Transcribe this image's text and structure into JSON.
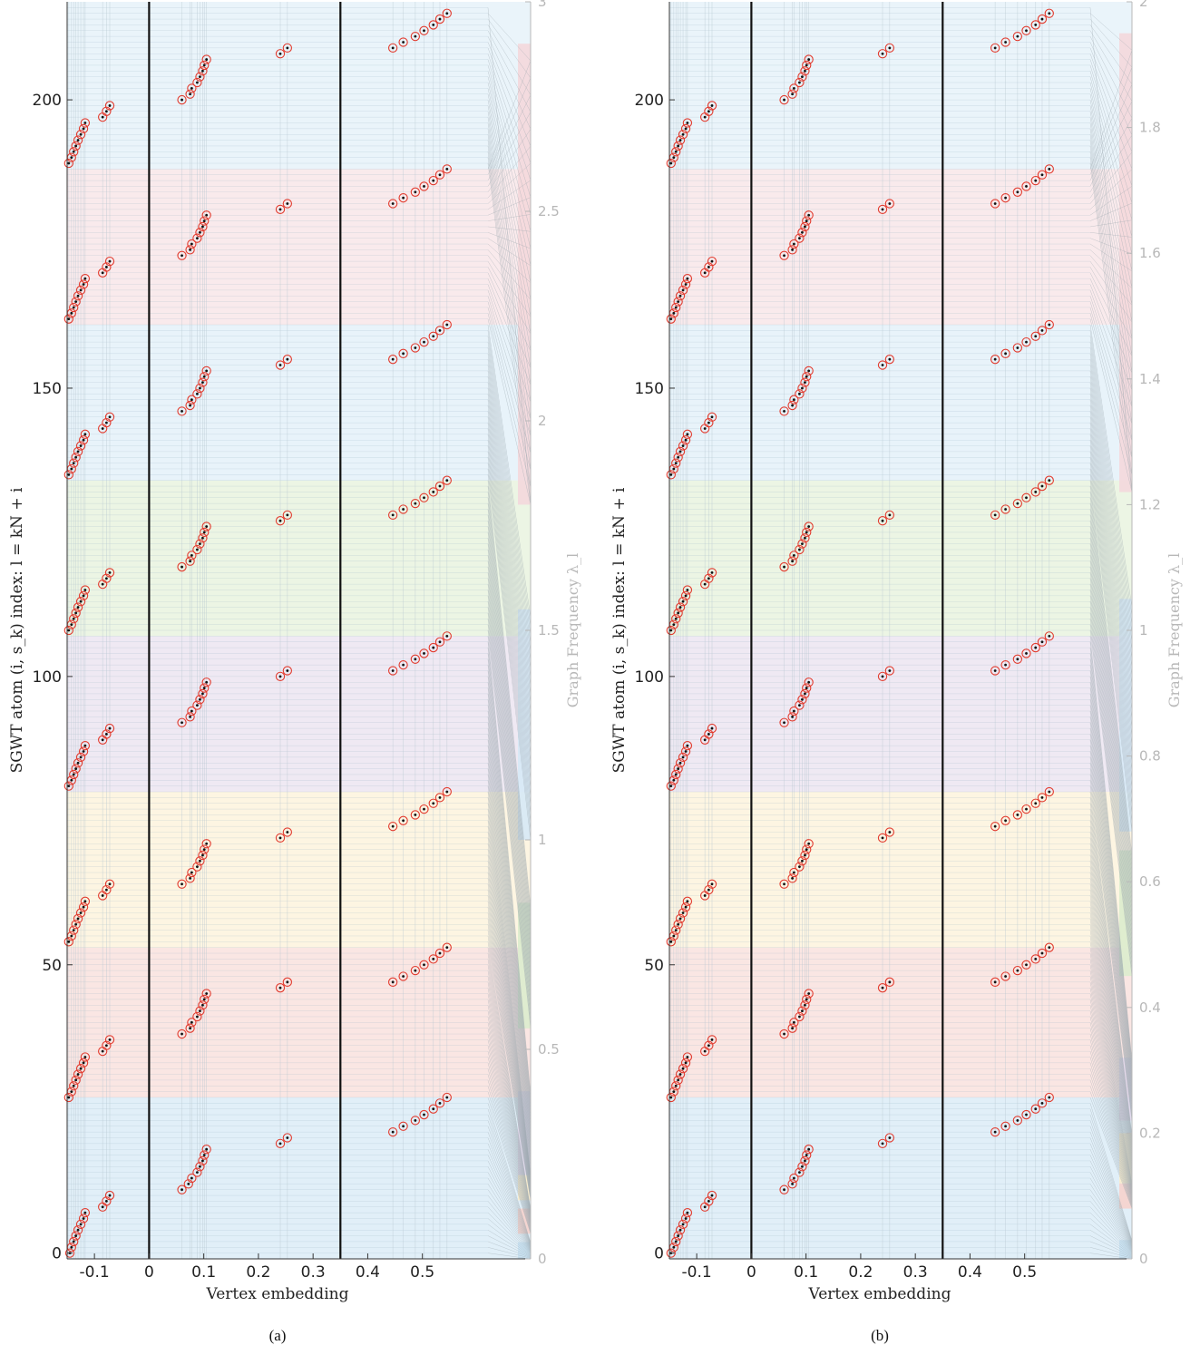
{
  "chart_data": [
    {
      "type": "scatter",
      "caption": "(a)",
      "xlabel": "Vertex embedding",
      "ylabel": "SGWT atom (i, s_k) index: l = kN + i",
      "y2label": "Graph Frequency λ_l",
      "xlim": [
        -0.15,
        0.62
      ],
      "ylim": [
        -1,
        217
      ],
      "xticks": [
        -0.1,
        0,
        0.1,
        0.2,
        0.3,
        0.4,
        0.5
      ],
      "xtick_labels": [
        "-0.1",
        "0",
        "0.1",
        "0.2",
        "0.3",
        "0.4",
        "0.5"
      ],
      "yticks": [
        0,
        50,
        100,
        150,
        200
      ],
      "ytick_labels": [
        "0",
        "50",
        "100",
        "150",
        "200"
      ],
      "freq_lim": [
        0,
        3
      ],
      "freq_ticks": [
        0,
        0.5,
        1,
        1.5,
        2,
        2.5,
        3
      ],
      "freq_tick_labels": [
        "0",
        "0.5",
        "1",
        "1.5",
        "2",
        "2.5",
        "3"
      ],
      "vertical_lines_x": [
        0,
        0.35
      ],
      "bands": [
        {
          "y": [
            -1,
            27
          ],
          "color": "#c9e2f3"
        },
        {
          "y": [
            27,
            53
          ],
          "color": "#f6d2cc"
        },
        {
          "y": [
            53,
            80
          ],
          "color": "#fbeccb"
        },
        {
          "y": [
            80,
            107
          ],
          "color": "#e1d7ea"
        },
        {
          "y": [
            107,
            134
          ],
          "color": "#dceccd"
        },
        {
          "y": [
            134,
            161
          ],
          "color": "#d6e9f6"
        },
        {
          "y": [
            161,
            188
          ],
          "color": "#f4d8dc"
        },
        {
          "y": [
            188,
            217
          ],
          "color": "#d9ebf6"
        }
      ],
      "freq_bands": [
        {
          "y": [
            0,
            0.04
          ],
          "color": "#c9e2f3"
        },
        {
          "y": [
            0.06,
            0.12
          ],
          "color": "#f6d2cc"
        },
        {
          "y": [
            0.14,
            0.2
          ],
          "color": "#fbeccb"
        },
        {
          "y": [
            0.2,
            0.4
          ],
          "color": "#e1d7ea"
        },
        {
          "y": [
            0.55,
            0.85
          ],
          "color": "#dceccd"
        },
        {
          "y": [
            1.0,
            1.55
          ],
          "color": "#d6e9f6"
        },
        {
          "y": [
            1.8,
            2.9
          ],
          "color": "#f4d8dc"
        }
      ],
      "red_circles": [
        {
          "x": [
            -0.145,
            -0.142,
            -0.138,
            -0.134,
            -0.13,
            -0.125,
            -0.12,
            -0.117,
            -0.085,
            -0.078,
            -0.072
          ],
          "y0": 0,
          "dy": 1
        },
        {
          "x": [
            0.06,
            0.072,
            0.078,
            0.088,
            0.093,
            0.098,
            0.101,
            0.105,
            0.24,
            0.253
          ],
          "y0": 11,
          "dy": 1
        },
        {
          "x": [
            0.446,
            0.465,
            0.487,
            0.503,
            0.52,
            0.532,
            0.545
          ],
          "y0": 21,
          "dy": 1
        },
        {
          "x": [
            -0.147,
            -0.142,
            -0.138,
            -0.134,
            -0.13,
            -0.125,
            -0.12,
            -0.117,
            -0.085,
            -0.078,
            -0.072
          ],
          "y0": 27,
          "dy": 1
        },
        {
          "x": [
            0.06,
            0.075,
            0.078,
            0.088,
            0.093,
            0.098,
            0.101,
            0.105,
            0.24,
            0.253
          ],
          "y0": 38,
          "dy": 1
        },
        {
          "x": [
            0.446,
            0.465,
            0.487,
            0.503,
            0.52,
            0.532,
            0.545
          ],
          "y0": 47,
          "dy": 1
        },
        {
          "x": [
            -0.147,
            -0.142,
            -0.138,
            -0.134,
            -0.13,
            -0.125,
            -0.12,
            -0.117,
            -0.085,
            -0.078,
            -0.072
          ],
          "y0": 54,
          "dy": 1
        },
        {
          "x": [
            0.06,
            0.075,
            0.078,
            0.088,
            0.093,
            0.098,
            0.101,
            0.105,
            0.24,
            0.253
          ],
          "y0": 64,
          "dy": 1
        },
        {
          "x": [
            0.446,
            0.465,
            0.487,
            0.503,
            0.52,
            0.532,
            0.545
          ],
          "y0": 74,
          "dy": 1
        },
        {
          "x": [
            -0.147,
            -0.142,
            -0.138,
            -0.134,
            -0.13,
            -0.125,
            -0.12,
            -0.117,
            -0.085,
            -0.078,
            -0.072
          ],
          "y0": 81,
          "dy": 1
        },
        {
          "x": [
            0.06,
            0.075,
            0.078,
            0.088,
            0.093,
            0.098,
            0.101,
            0.105,
            0.24,
            0.253
          ],
          "y0": 92,
          "dy": 1
        },
        {
          "x": [
            0.446,
            0.465,
            0.487,
            0.503,
            0.52,
            0.532,
            0.545
          ],
          "y0": 101,
          "dy": 1
        },
        {
          "x": [
            -0.147,
            -0.142,
            -0.138,
            -0.134,
            -0.13,
            -0.125,
            -0.12,
            -0.117,
            -0.085,
            -0.078,
            -0.072
          ],
          "y0": 108,
          "dy": 1
        },
        {
          "x": [
            0.06,
            0.075,
            0.078,
            0.088,
            0.093,
            0.098,
            0.101,
            0.105,
            0.24,
            0.253
          ],
          "y0": 119,
          "dy": 1
        },
        {
          "x": [
            0.446,
            0.465,
            0.487,
            0.503,
            0.52,
            0.532,
            0.545
          ],
          "y0": 128,
          "dy": 1
        },
        {
          "x": [
            -0.147,
            -0.142,
            -0.138,
            -0.134,
            -0.13,
            -0.125,
            -0.12,
            -0.117,
            -0.085,
            -0.078,
            -0.072
          ],
          "y0": 135,
          "dy": 1
        },
        {
          "x": [
            0.06,
            0.075,
            0.078,
            0.088,
            0.093,
            0.098,
            0.101,
            0.105,
            0.24,
            0.253
          ],
          "y0": 146,
          "dy": 1
        },
        {
          "x": [
            0.446,
            0.465,
            0.487,
            0.503,
            0.52,
            0.532,
            0.545
          ],
          "y0": 155,
          "dy": 1
        },
        {
          "x": [
            -0.147,
            -0.142,
            -0.138,
            -0.134,
            -0.13,
            -0.125,
            -0.12,
            -0.117,
            -0.085,
            -0.078,
            -0.072
          ],
          "y0": 162,
          "dy": 1
        },
        {
          "x": [
            0.06,
            0.075,
            0.078,
            0.088,
            0.093,
            0.098,
            0.101,
            0.105,
            0.24,
            0.253
          ],
          "y0": 173,
          "dy": 1
        },
        {
          "x": [
            0.446,
            0.465,
            0.487,
            0.503,
            0.52,
            0.532,
            0.545
          ],
          "y0": 182,
          "dy": 1
        },
        {
          "x": [
            -0.147,
            -0.142,
            -0.138,
            -0.134,
            -0.13,
            -0.125,
            -0.12,
            -0.117,
            -0.085,
            -0.078,
            -0.072
          ],
          "y0": 189,
          "dy": 1
        },
        {
          "x": [
            0.06,
            0.075,
            0.078,
            0.088,
            0.093,
            0.098,
            0.101,
            0.105,
            0.24,
            0.253
          ],
          "y0": 200,
          "dy": 1
        },
        {
          "x": [
            0.446,
            0.465,
            0.487,
            0.503,
            0.52,
            0.532,
            0.545
          ],
          "y0": 209,
          "dy": 1
        }
      ]
    },
    {
      "type": "scatter",
      "caption": "(b)",
      "xlabel": "Vertex embedding",
      "ylabel": "SGWT atom (i, s_k) index: l = kN + i",
      "y2label": "Graph Frequency λ_l",
      "xlim": [
        -0.15,
        0.62
      ],
      "ylim": [
        -1,
        217
      ],
      "xticks": [
        -0.1,
        0,
        0.1,
        0.2,
        0.3,
        0.4,
        0.5
      ],
      "xtick_labels": [
        "-0.1",
        "0",
        "0.1",
        "0.2",
        "0.3",
        "0.4",
        "0.5"
      ],
      "yticks": [
        0,
        50,
        100,
        150,
        200
      ],
      "ytick_labels": [
        "0",
        "50",
        "100",
        "150",
        "200"
      ],
      "freq_lim": [
        0,
        2
      ],
      "freq_ticks": [
        0,
        0.2,
        0.4,
        0.6,
        0.8,
        1,
        1.2,
        1.4,
        1.6,
        1.8,
        2
      ],
      "freq_tick_labels": [
        "0",
        "0.2",
        "0.4",
        "0.6",
        "0.8",
        "1",
        "1.2",
        "1.4",
        "1.6",
        "1.8",
        "2"
      ],
      "vertical_lines_x": [
        0,
        0.35
      ],
      "bands": [
        {
          "y": [
            -1,
            27
          ],
          "color": "#c9e2f3"
        },
        {
          "y": [
            27,
            53
          ],
          "color": "#f6d2cc"
        },
        {
          "y": [
            53,
            80
          ],
          "color": "#fbeccb"
        },
        {
          "y": [
            80,
            107
          ],
          "color": "#e1d7ea"
        },
        {
          "y": [
            107,
            134
          ],
          "color": "#dceccd"
        },
        {
          "y": [
            134,
            161
          ],
          "color": "#d6e9f6"
        },
        {
          "y": [
            161,
            188
          ],
          "color": "#f4d8dc"
        },
        {
          "y": [
            188,
            217
          ],
          "color": "#d9ebf6"
        }
      ],
      "freq_bands": [
        {
          "y": [
            0,
            0.03
          ],
          "color": "#c9e2f3"
        },
        {
          "y": [
            0.08,
            0.12
          ],
          "color": "#f6d2cc"
        },
        {
          "y": [
            0.12,
            0.2
          ],
          "color": "#fbeccb"
        },
        {
          "y": [
            0.22,
            0.32
          ],
          "color": "#e1d7ea"
        },
        {
          "y": [
            0.45,
            0.65
          ],
          "color": "#dceccd"
        },
        {
          "y": [
            0.68,
            1.05
          ],
          "color": "#d6e9f6"
        },
        {
          "y": [
            1.22,
            1.95
          ],
          "color": "#f4d8dc"
        }
      ],
      "red_circles": [
        {
          "x": [
            -0.147,
            -0.142,
            -0.138,
            -0.134,
            -0.13,
            -0.125,
            -0.12,
            -0.117,
            -0.085,
            -0.078,
            -0.072
          ],
          "y0": 0,
          "dy": 1
        },
        {
          "x": [
            0.06,
            0.075,
            0.078,
            0.088,
            0.093,
            0.098,
            0.101,
            0.105,
            0.24,
            0.253
          ],
          "y0": 11,
          "dy": 1
        },
        {
          "x": [
            0.446,
            0.465,
            0.487,
            0.503,
            0.52,
            0.532,
            0.545
          ],
          "y0": 21,
          "dy": 1
        },
        {
          "x": [
            -0.147,
            -0.142,
            -0.138,
            -0.134,
            -0.13,
            -0.125,
            -0.12,
            -0.117,
            -0.085,
            -0.078,
            -0.072
          ],
          "y0": 27,
          "dy": 1
        },
        {
          "x": [
            0.06,
            0.075,
            0.078,
            0.088,
            0.093,
            0.098,
            0.101,
            0.105,
            0.24,
            0.253
          ],
          "y0": 38,
          "dy": 1
        },
        {
          "x": [
            0.446,
            0.465,
            0.487,
            0.503,
            0.52,
            0.532,
            0.545
          ],
          "y0": 47,
          "dy": 1
        },
        {
          "x": [
            -0.147,
            -0.142,
            -0.138,
            -0.134,
            -0.13,
            -0.125,
            -0.12,
            -0.117,
            -0.085,
            -0.078,
            -0.072
          ],
          "y0": 54,
          "dy": 1
        },
        {
          "x": [
            0.06,
            0.075,
            0.078,
            0.088,
            0.093,
            0.098,
            0.101,
            0.105,
            0.24,
            0.253
          ],
          "y0": 64,
          "dy": 1
        },
        {
          "x": [
            0.446,
            0.465,
            0.487,
            0.503,
            0.52,
            0.532,
            0.545
          ],
          "y0": 74,
          "dy": 1
        },
        {
          "x": [
            -0.147,
            -0.142,
            -0.138,
            -0.134,
            -0.13,
            -0.125,
            -0.12,
            -0.117,
            -0.085,
            -0.078,
            -0.072
          ],
          "y0": 81,
          "dy": 1
        },
        {
          "x": [
            0.06,
            0.075,
            0.078,
            0.088,
            0.093,
            0.098,
            0.101,
            0.105,
            0.24,
            0.253
          ],
          "y0": 92,
          "dy": 1
        },
        {
          "x": [
            0.446,
            0.465,
            0.487,
            0.503,
            0.52,
            0.532,
            0.545
          ],
          "y0": 101,
          "dy": 1
        },
        {
          "x": [
            -0.147,
            -0.142,
            -0.138,
            -0.134,
            -0.13,
            -0.125,
            -0.12,
            -0.117,
            -0.085,
            -0.078,
            -0.072
          ],
          "y0": 108,
          "dy": 1
        },
        {
          "x": [
            0.06,
            0.075,
            0.078,
            0.088,
            0.093,
            0.098,
            0.101,
            0.105,
            0.24,
            0.253
          ],
          "y0": 119,
          "dy": 1
        },
        {
          "x": [
            0.446,
            0.465,
            0.487,
            0.503,
            0.52,
            0.532,
            0.545
          ],
          "y0": 128,
          "dy": 1
        },
        {
          "x": [
            -0.147,
            -0.142,
            -0.138,
            -0.134,
            -0.13,
            -0.125,
            -0.12,
            -0.117,
            -0.085,
            -0.078,
            -0.072
          ],
          "y0": 135,
          "dy": 1
        },
        {
          "x": [
            0.06,
            0.075,
            0.078,
            0.088,
            0.093,
            0.098,
            0.101,
            0.105,
            0.24,
            0.253
          ],
          "y0": 146,
          "dy": 1
        },
        {
          "x": [
            0.446,
            0.465,
            0.487,
            0.503,
            0.52,
            0.532,
            0.545
          ],
          "y0": 155,
          "dy": 1
        },
        {
          "x": [
            -0.147,
            -0.142,
            -0.138,
            -0.134,
            -0.13,
            -0.125,
            -0.12,
            -0.117,
            -0.085,
            -0.078,
            -0.072
          ],
          "y0": 162,
          "dy": 1
        },
        {
          "x": [
            0.06,
            0.075,
            0.078,
            0.088,
            0.093,
            0.098,
            0.101,
            0.105,
            0.24,
            0.253
          ],
          "y0": 173,
          "dy": 1
        },
        {
          "x": [
            0.446,
            0.465,
            0.487,
            0.503,
            0.52,
            0.532,
            0.545
          ],
          "y0": 182,
          "dy": 1
        },
        {
          "x": [
            -0.147,
            -0.142,
            -0.138,
            -0.134,
            -0.13,
            -0.125,
            -0.12,
            -0.117,
            -0.085,
            -0.078,
            -0.072
          ],
          "y0": 189,
          "dy": 1
        },
        {
          "x": [
            0.06,
            0.075,
            0.078,
            0.088,
            0.093,
            0.098,
            0.101,
            0.105,
            0.24,
            0.253
          ],
          "y0": 200,
          "dy": 1
        },
        {
          "x": [
            0.446,
            0.465,
            0.487,
            0.503,
            0.52,
            0.532,
            0.545
          ],
          "y0": 209,
          "dy": 1
        }
      ]
    }
  ],
  "colors": {
    "circle": "#e23b2e",
    "dot": "#111111",
    "axis": "#333333",
    "freq_axis": "#b8b8b8",
    "fan": "#9aa6ad"
  }
}
